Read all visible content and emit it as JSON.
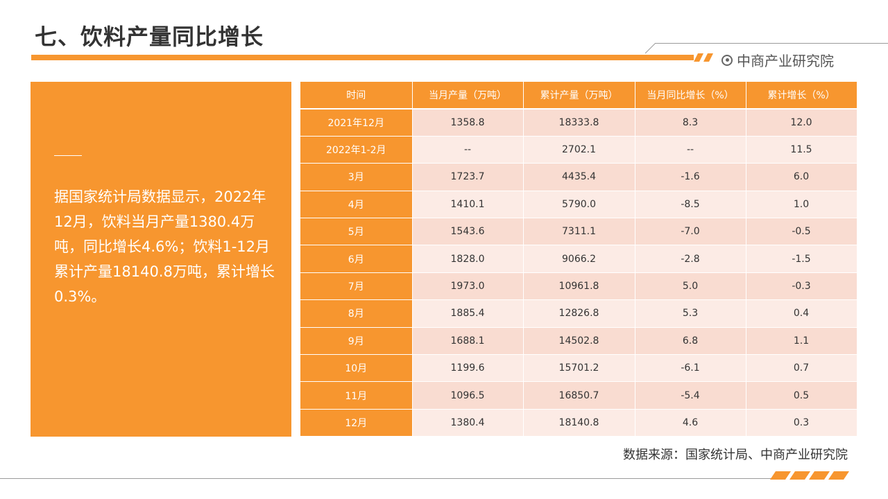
{
  "header": {
    "title": "七、饮料产量同比增长",
    "brand": "中商产业研究院"
  },
  "summary": {
    "text": "据国家统计局数据显示，2022年12月，饮料当月产量1380.4万吨，同比增长4.6%；饮料1-12月累计产量18140.8万吨，累计增长0.3%。"
  },
  "table": {
    "headers": [
      "时间",
      "当月产量（万吨）",
      "累计产量（万吨）",
      "当月同比增长（%）",
      "累计增长（%）"
    ],
    "rows": [
      [
        "2021年12月",
        "1358.8",
        "18333.8",
        "8.3",
        "12.0"
      ],
      [
        "2022年1-2月",
        "--",
        "2702.1",
        "--",
        "11.5"
      ],
      [
        "3月",
        "1723.7",
        "4435.4",
        "-1.6",
        "6.0"
      ],
      [
        "4月",
        "1410.1",
        "5790.0",
        "-8.5",
        "1.0"
      ],
      [
        "5月",
        "1543.6",
        "7311.1",
        "-7.0",
        "-0.5"
      ],
      [
        "6月",
        "1828.0",
        "9066.2",
        "-2.8",
        "-1.5"
      ],
      [
        "7月",
        "1973.0",
        "10961.8",
        "5.0",
        "-0.3"
      ],
      [
        "8月",
        "1885.4",
        "12826.8",
        "5.3",
        "0.4"
      ],
      [
        "9月",
        "1688.1",
        "14502.8",
        "6.8",
        "1.1"
      ],
      [
        "10月",
        "1199.6",
        "15701.2",
        "-6.1",
        "0.7"
      ],
      [
        "11月",
        "1096.5",
        "16850.7",
        "-5.4",
        "0.5"
      ],
      [
        "12月",
        "1380.4",
        "18140.8",
        "4.6",
        "0.3"
      ]
    ]
  },
  "footer": {
    "source": "数据来源：国家统计局、中商产业研究院"
  },
  "colors": {
    "accent": "#f7962f",
    "row_odd": "#f9dcd1",
    "row_even": "#fcebe5"
  }
}
